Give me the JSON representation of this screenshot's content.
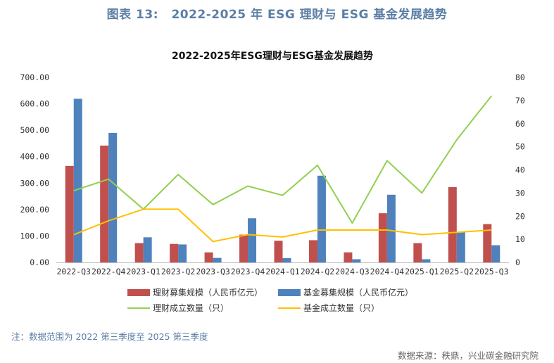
{
  "figure": {
    "label": "图表 13:",
    "title": "2022-2025 年 ESG 理财与 ESG 基金发展趋势"
  },
  "note": "注：数据范围为 2022 第三季度至 2025 第三季度",
  "source": "数据来源：秩鼎，兴业碳金融研究院",
  "colors": {
    "bar_wealth": "#c0504d",
    "bar_fund": "#4f81bd",
    "line_wealth": "#92d050",
    "line_fund": "#ffc000",
    "title_blue": "#5b7fa6"
  },
  "chart_data": {
    "type": "bar",
    "title": "2022-2025年ESG理财与ESG基金发展趋势",
    "categories": [
      "2022-Q3",
      "2022-Q4",
      "2023-Q1",
      "2023-Q2",
      "2023-Q3",
      "2023-Q4",
      "2024-Q1",
      "2024-Q2",
      "2024-Q3",
      "2024-Q4",
      "2025-Q1",
      "2025-Q2",
      "2025-Q3"
    ],
    "ylim_left": [
      0,
      700
    ],
    "yticks_left": [
      "0.00",
      "100.00",
      "200.00",
      "300.00",
      "400.00",
      "500.00",
      "600.00",
      "700.00"
    ],
    "ylim_right": [
      0,
      80
    ],
    "yticks_right": [
      "0",
      "10",
      "20",
      "30",
      "40",
      "50",
      "60",
      "70",
      "80"
    ],
    "grid": false,
    "legend_position": "bottom",
    "series": [
      {
        "name": "理财募集规模（人民币亿元）",
        "type": "bar",
        "axis": "left",
        "color": "#c0504d",
        "values": [
          365,
          442,
          73,
          70,
          38,
          105,
          82,
          84,
          38,
          186,
          73,
          285,
          145
        ]
      },
      {
        "name": "基金募集规模（人民币亿元）",
        "type": "bar",
        "axis": "left",
        "color": "#4f81bd",
        "values": [
          619,
          490,
          95,
          68,
          17,
          167,
          16,
          328,
          12,
          256,
          12,
          115,
          65
        ]
      },
      {
        "name": "理财成立数量（只）",
        "type": "line",
        "axis": "right",
        "color": "#92d050",
        "values": [
          31,
          36,
          23,
          38,
          25,
          33,
          29,
          42,
          17,
          44,
          30,
          53,
          72
        ]
      },
      {
        "name": "基金成立数量（只）",
        "type": "line",
        "axis": "right",
        "color": "#ffc000",
        "values": [
          12,
          18,
          23,
          23,
          9,
          12,
          11,
          14,
          14,
          14,
          12,
          13,
          14
        ]
      }
    ]
  }
}
